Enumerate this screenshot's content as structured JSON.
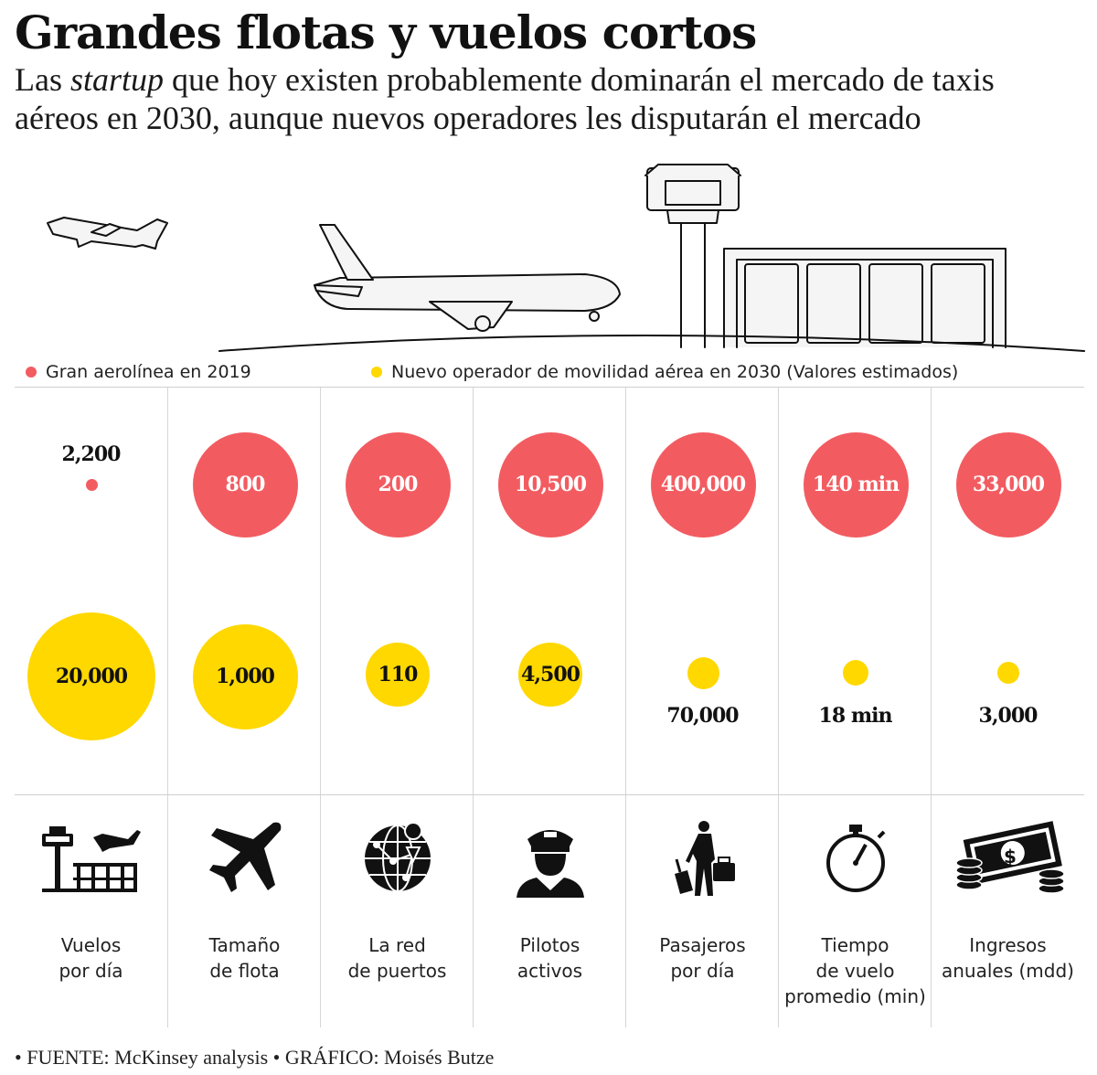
{
  "title": "Grandes flotas y vuelos cortos",
  "subtitle": {
    "pre": "Las ",
    "em": "startup",
    "post": " que hoy existen probablemente dominarán el mercado de taxis aéreos en 2030, aunque nuevos operadores les disputarán el mercado"
  },
  "legend": {
    "red_label": "Gran aerolínea en 2019",
    "yellow_label": "Nuevo operador de movilidad aérea en 2030 (Valores estimados)",
    "red_color": "#f25c61",
    "yellow_color": "#ffd800"
  },
  "chart_data": {
    "type": "proportional-circles",
    "series": [
      {
        "name": "Gran aerolínea en 2019",
        "color": "#f25c61",
        "labels": [
          "2,200",
          "800",
          "200",
          "10,500",
          "400,000",
          "140 min",
          "33,000"
        ]
      },
      {
        "name": "Nuevo operador de movilidad aérea en 2030 (Valores estimados)",
        "color": "#ffd800",
        "labels": [
          "20,000",
          "1,000",
          "110",
          "4,500",
          "70,000",
          "18 min",
          "3,000"
        ]
      }
    ],
    "categories": [
      {
        "lines": [
          "Vuelos",
          "por día"
        ],
        "icon": "control-tower-icon"
      },
      {
        "lines": [
          "Tamaño",
          "de flota"
        ],
        "icon": "airplane-icon"
      },
      {
        "lines": [
          "La red",
          "de puertos"
        ],
        "icon": "globe-network-icon"
      },
      {
        "lines": [
          "Pilotos",
          "activos"
        ],
        "icon": "pilot-icon"
      },
      {
        "lines": [
          "Pasajeros",
          "por día"
        ],
        "icon": "traveler-icon"
      },
      {
        "lines": [
          "Tiempo",
          "de vuelo",
          "promedio (min)"
        ],
        "icon": "stopwatch-icon"
      },
      {
        "lines": [
          "Ingresos",
          "anuales (mdd)"
        ],
        "icon": "money-icon"
      }
    ],
    "red_size_ratio": [
      0.095,
      0.82,
      0.82,
      0.82,
      0.82,
      0.82,
      0.82
    ],
    "yellow_size_ratio": [
      1.0,
      0.82,
      0.5,
      0.5,
      0.25,
      0.2,
      0.17
    ]
  },
  "footer": "• FUENTE: McKinsey analysis • GRÁFICO: Moisés Butze"
}
